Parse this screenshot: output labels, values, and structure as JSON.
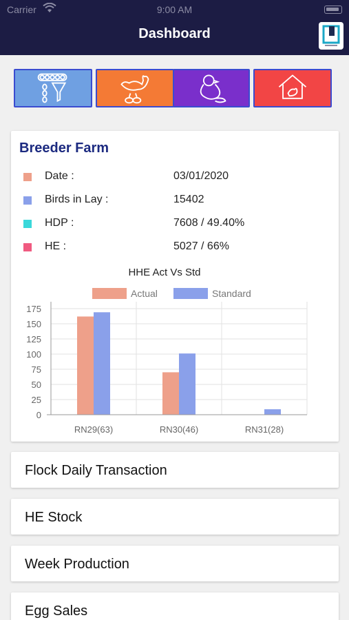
{
  "status": {
    "carrier": "Carrier",
    "time": "9:00 AM"
  },
  "header": {
    "title": "Dashboard"
  },
  "tiles": [
    {
      "name": "egg-processing-tile",
      "color": "#6fa0e2",
      "icon": "egg-funnel-icon"
    },
    {
      "name": "breeder-hen-tile",
      "color": "#f47a35",
      "icon": "hen-icon"
    },
    {
      "name": "chick-tile",
      "color": "#7a2fcb",
      "icon": "chick-icon"
    },
    {
      "name": "farm-house-tile",
      "color": "#f24545",
      "icon": "farm-house-icon"
    }
  ],
  "breeder_farm": {
    "title": "Breeder Farm",
    "rows": [
      {
        "label": "Date :",
        "value": "03/01/2020",
        "color": "#eea08a"
      },
      {
        "label": "Birds in Lay :",
        "value": "15402",
        "color": "#8aa0ea"
      },
      {
        "label": "HDP :",
        "value": "7608 / 49.40%",
        "color": "#3ad8da"
      },
      {
        "label": "HE :",
        "value": "5027 / 66%",
        "color": "#f05a80"
      }
    ]
  },
  "chart_data": {
    "type": "bar",
    "title": "HHE Act Vs Std",
    "categories": [
      "RN29(63)",
      "RN30(46)",
      "RN31(28)"
    ],
    "series": [
      {
        "name": "Actual",
        "values": [
          162,
          70,
          0
        ],
        "color": "#eea08a"
      },
      {
        "name": "Standard",
        "values": [
          169,
          101,
          9
        ],
        "color": "#8aa0ea"
      }
    ],
    "ylim": [
      0,
      175
    ],
    "yticks": [
      0,
      25,
      50,
      75,
      100,
      125,
      150,
      175
    ],
    "grid": true,
    "legend": "top"
  },
  "menu": [
    {
      "name": "flock-daily-transaction-item",
      "label": "Flock Daily Transaction"
    },
    {
      "name": "he-stock-item",
      "label": "HE Stock"
    },
    {
      "name": "week-production-item",
      "label": "Week Production"
    },
    {
      "name": "egg-sales-item",
      "label": "Egg Sales"
    }
  ]
}
